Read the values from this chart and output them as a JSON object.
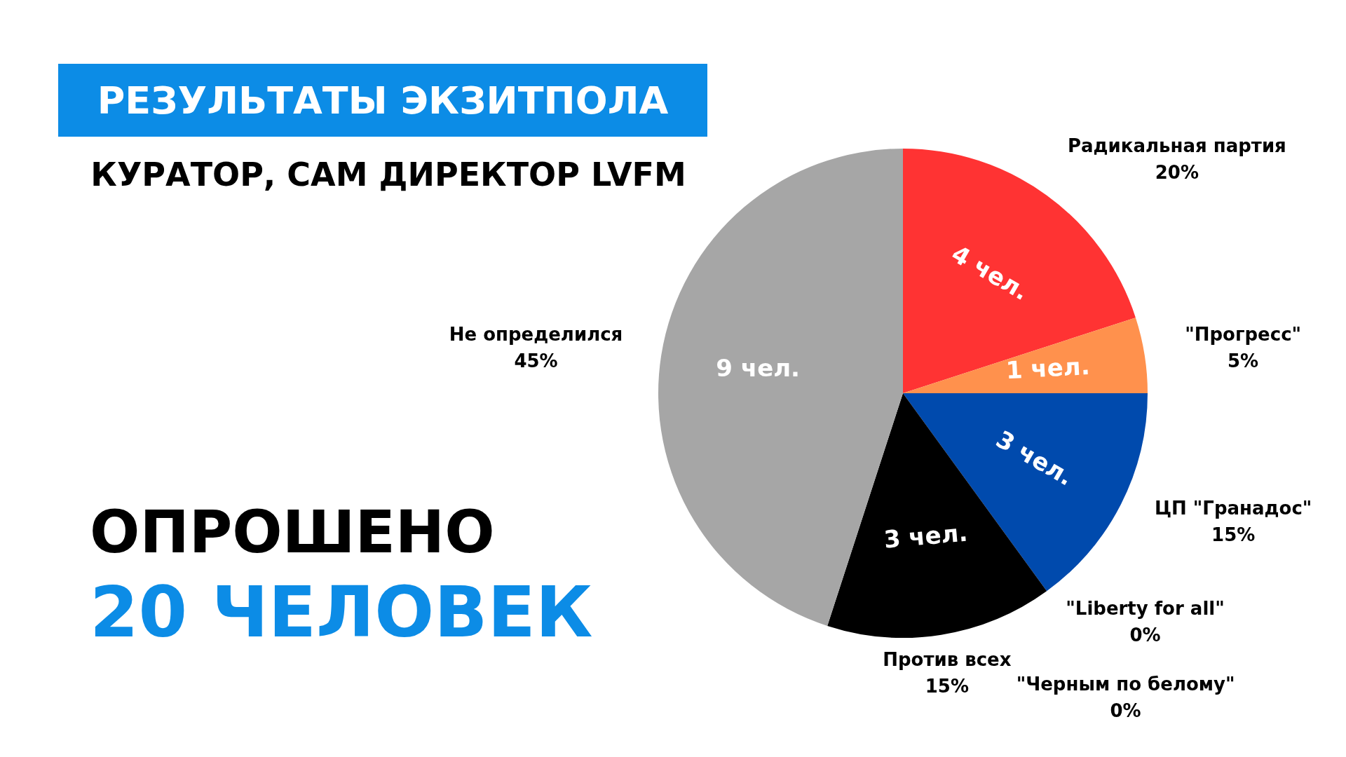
{
  "chart_data": {
    "type": "pie",
    "title": "РЕЗУЛЬТАТЫ ЭКЗИТПОЛА",
    "subtitle": "КУРАТОР, САМ ДИРЕКТОР LVFM",
    "categories": [
      "Радикальная партия",
      "\"Прогресс\"",
      "ЦП \"Гранадос\"",
      "\"Liberty for all\"",
      "\"Черным по белому\"",
      "Против всех",
      "Не определился"
    ],
    "values": [
      4,
      1,
      3,
      0,
      0,
      3,
      9
    ],
    "colors": [
      "#ff3333",
      "#ff914d",
      "#004aad",
      "#38b6ff",
      "#5e17eb",
      "#000000",
      "#a6a6a6"
    ],
    "value_labels": [
      "4 чел.",
      "1 чел.",
      "3 чел.",
      null,
      null,
      "3 чел.",
      "9 чел."
    ],
    "annotations": [
      "ОПРОШЕНО",
      "20 ЧЕЛОВЕК",
      {
        "text": "20%",
        "x": "Радикальная партия"
      },
      {
        "text": "5%",
        "x": "\"Прогресс\""
      },
      {
        "text": "15%",
        "x": "ЦП \"Гранадос\""
      },
      {
        "text": "0%",
        "x": "\"Liberty for all\""
      },
      {
        "text": "0%",
        "x": "\"Черным по белому\""
      },
      {
        "text": "15%",
        "x": "Против всех"
      },
      {
        "text": "45%",
        "x": "Не определился"
      }
    ],
    "legend": false
  }
}
